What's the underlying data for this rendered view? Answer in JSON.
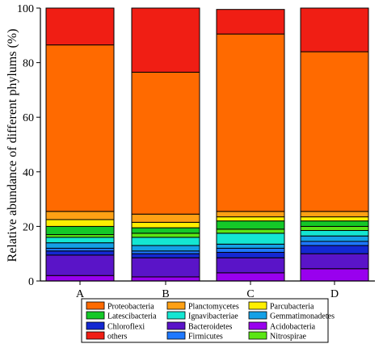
{
  "chart_data": {
    "type": "bar",
    "stacked": true,
    "ylabel": "Relative abundance of different phylums (%)",
    "xlabel": "",
    "ylim": [
      0,
      100
    ],
    "yticks": [
      0,
      20,
      40,
      60,
      80,
      100
    ],
    "categories": [
      "A",
      "B",
      "C",
      "D"
    ],
    "legend_position": "bottom",
    "series": [
      {
        "name": "Acidobacteria",
        "color": "#9900ee",
        "values": [
          2.0,
          1.5,
          3.0,
          4.5
        ]
      },
      {
        "name": "Bacteroidetes",
        "color": "#5a14c8",
        "values": [
          7.5,
          7.0,
          5.5,
          5.5
        ]
      },
      {
        "name": "Chloroflexi",
        "color": "#1428d2",
        "values": [
          1.5,
          1.5,
          2.0,
          3.0
        ]
      },
      {
        "name": "Firmicutes",
        "color": "#1e78ff",
        "values": [
          1.0,
          1.0,
          1.5,
          1.5
        ]
      },
      {
        "name": "Gemmatimonadetes",
        "color": "#14a0e6",
        "values": [
          2.0,
          2.0,
          1.5,
          2.0
        ]
      },
      {
        "name": "Ignavibacteriae",
        "color": "#14e6d2",
        "values": [
          2.0,
          3.0,
          4.0,
          2.0
        ]
      },
      {
        "name": "Nitrospirae",
        "color": "#5ae614",
        "values": [
          1.0,
          1.5,
          1.5,
          1.5
        ]
      },
      {
        "name": "Latescibacteria",
        "color": "#14c828",
        "values": [
          3.0,
          2.0,
          3.0,
          2.0
        ]
      },
      {
        "name": "Parcubacteria",
        "color": "#ffef00",
        "values": [
          2.5,
          2.0,
          1.5,
          1.5
        ]
      },
      {
        "name": "Planctomycetes",
        "color": "#ffa014",
        "values": [
          3.0,
          3.0,
          2.0,
          2.0
        ]
      },
      {
        "name": "Proteobacteria",
        "color": "#ff6a00",
        "values": [
          61.0,
          52.0,
          65.0,
          58.5
        ]
      },
      {
        "name": "others",
        "color": "#f01e14",
        "values": [
          13.5,
          23.5,
          9.0,
          16.0
        ]
      }
    ],
    "legend_order": [
      "Proteobacteria",
      "Planctomycetes",
      "Parcubacteria",
      "Latescibacteria",
      "Ignavibacteriae",
      "Gemmatimonadetes",
      "Chloroflexi",
      "Bacteroidetes",
      "Acidobacteria",
      "others",
      "Firmicutes",
      "Nitrospirae"
    ]
  }
}
